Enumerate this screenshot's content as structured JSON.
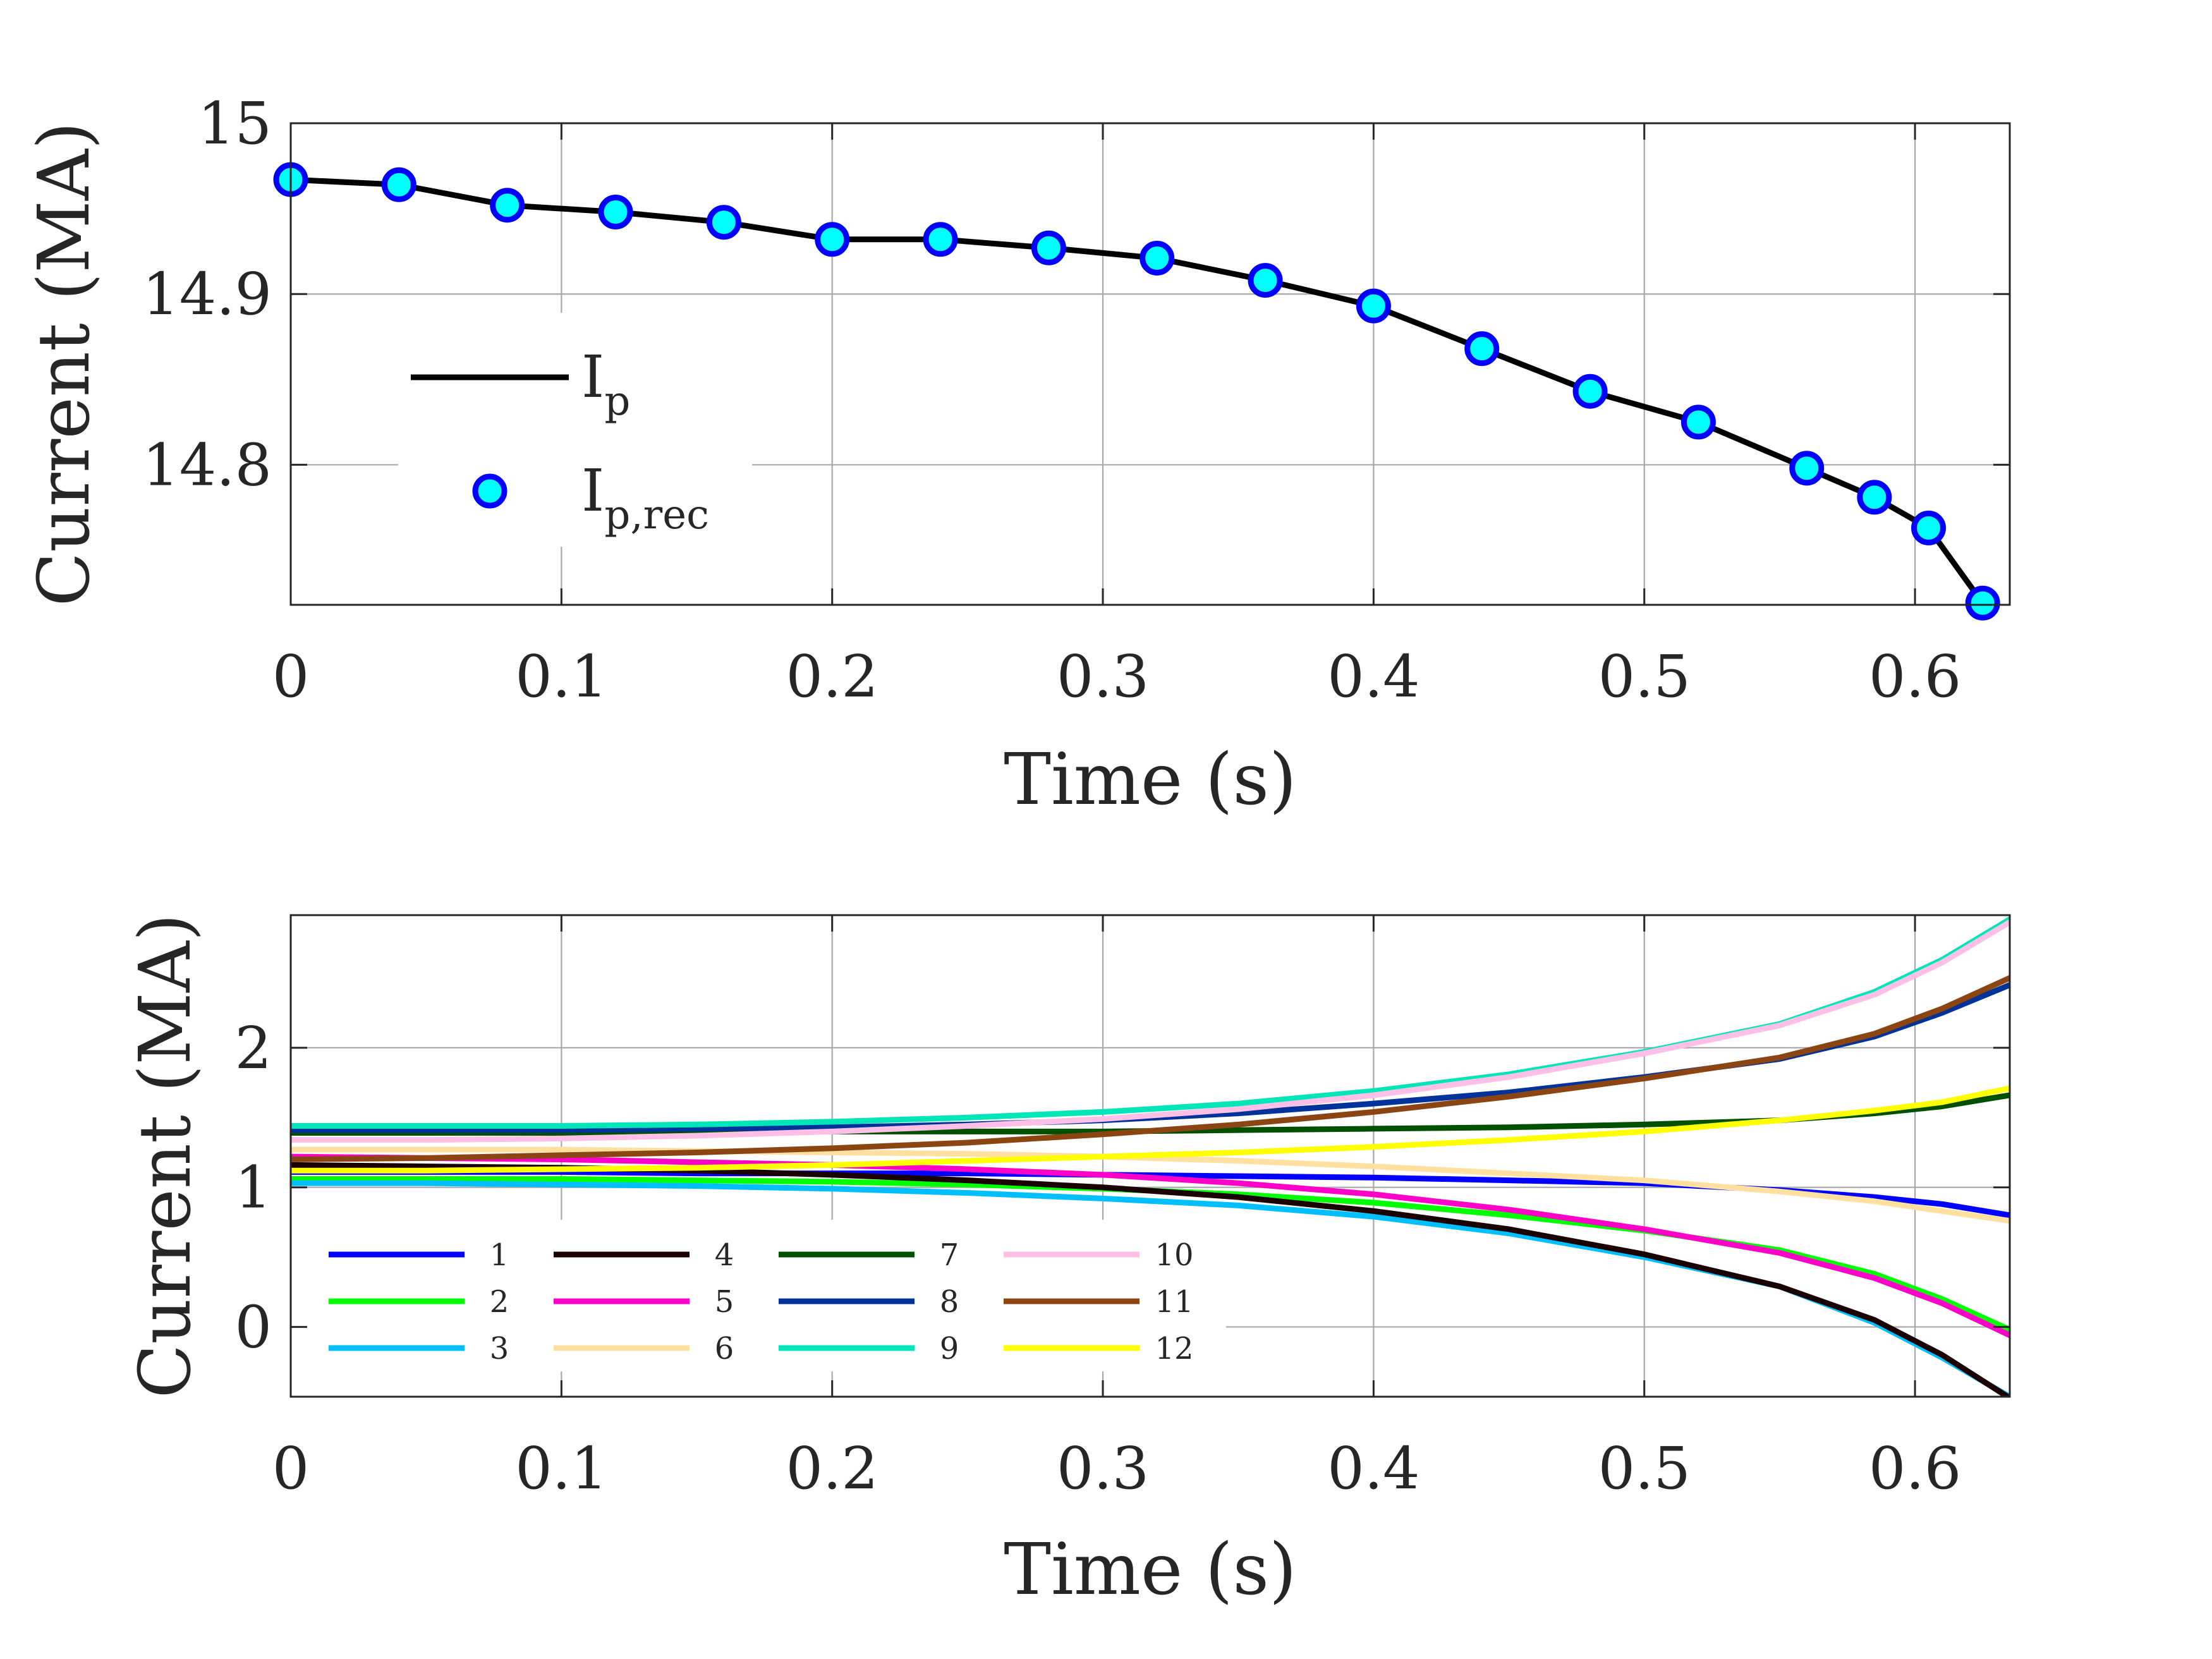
{
  "chart_data": [
    {
      "type": "line",
      "name": "plasma-current",
      "xlabel": "Time (s)",
      "ylabel": "Current (MA)",
      "xlim": [
        0,
        0.635
      ],
      "ylim": [
        14.718,
        15.0
      ],
      "xticks": [
        0,
        0.1,
        0.2,
        0.3,
        0.4,
        0.5,
        0.6
      ],
      "xtick_labels": [
        "0",
        "0.1",
        "0.2",
        "0.3",
        "0.4",
        "0.5",
        "0.6"
      ],
      "yticks": [
        14.8,
        14.9,
        15.0
      ],
      "ytick_labels": [
        "14.8",
        "14.9",
        "15"
      ],
      "grid": true,
      "legend_position": "left",
      "series": [
        {
          "name": "I_p",
          "label_main": "I",
          "label_sub": "p",
          "style": "line",
          "color": "#000000",
          "x": [
            0,
            0.04,
            0.08,
            0.12,
            0.16,
            0.2,
            0.24,
            0.28,
            0.32,
            0.36,
            0.4,
            0.44,
            0.48,
            0.52,
            0.56,
            0.585,
            0.605,
            0.625
          ],
          "y": [
            14.967,
            14.964,
            14.952,
            14.948,
            14.942,
            14.932,
            14.932,
            14.927,
            14.921,
            14.908,
            14.893,
            14.868,
            14.843,
            14.825,
            14.798,
            14.781,
            14.763,
            14.719
          ]
        },
        {
          "name": "I_p,rec",
          "label_main": "I",
          "label_sub": "p,rec",
          "style": "markers",
          "color": "#00ffff",
          "edge_color": "#0000ff",
          "x": [
            0,
            0.04,
            0.08,
            0.12,
            0.16,
            0.2,
            0.24,
            0.28,
            0.32,
            0.36,
            0.4,
            0.44,
            0.48,
            0.52,
            0.56,
            0.585,
            0.605,
            0.625
          ],
          "y": [
            14.967,
            14.964,
            14.952,
            14.948,
            14.942,
            14.932,
            14.932,
            14.927,
            14.921,
            14.908,
            14.893,
            14.868,
            14.843,
            14.825,
            14.798,
            14.781,
            14.763,
            14.719
          ]
        }
      ]
    },
    {
      "type": "line",
      "name": "coil-currents",
      "xlabel": "Time (s)",
      "ylabel": "Current (MA)",
      "xlim": [
        0,
        0.635
      ],
      "ylim": [
        -0.5,
        2.95
      ],
      "xticks": [
        0,
        0.1,
        0.2,
        0.3,
        0.4,
        0.5,
        0.6
      ],
      "xtick_labels": [
        "0",
        "0.1",
        "0.2",
        "0.3",
        "0.4",
        "0.5",
        "0.6"
      ],
      "yticks": [
        0,
        1,
        2
      ],
      "ytick_labels": [
        "0",
        "1",
        "2"
      ],
      "grid": true,
      "legend_position": "bottom-left",
      "x": [
        0,
        0.05,
        0.1,
        0.15,
        0.2,
        0.25,
        0.3,
        0.35,
        0.4,
        0.45,
        0.5,
        0.55,
        0.585,
        0.61,
        0.635
      ],
      "series": [
        {
          "name": "1",
          "color": "#0000ff",
          "values": [
            1.11,
            1.11,
            1.11,
            1.1,
            1.1,
            1.1,
            1.09,
            1.08,
            1.07,
            1.05,
            1.03,
            0.98,
            0.93,
            0.88,
            0.8
          ]
        },
        {
          "name": "2",
          "color": "#00ff00",
          "values": [
            1.06,
            1.06,
            1.06,
            1.05,
            1.04,
            1.02,
            0.99,
            0.95,
            0.89,
            0.8,
            0.69,
            0.55,
            0.38,
            0.2,
            -0.02
          ]
        },
        {
          "name": "3",
          "color": "#00bfff",
          "values": [
            1.03,
            1.03,
            1.02,
            1.01,
            0.99,
            0.96,
            0.92,
            0.87,
            0.79,
            0.67,
            0.5,
            0.29,
            0.03,
            -0.22,
            -0.5
          ]
        },
        {
          "name": "4",
          "color": "#1a0000",
          "values": [
            1.16,
            1.15,
            1.14,
            1.12,
            1.09,
            1.05,
            1.0,
            0.93,
            0.83,
            0.7,
            0.52,
            0.29,
            0.05,
            -0.2,
            -0.51
          ]
        },
        {
          "name": "5",
          "color": "#ff00c8",
          "values": [
            1.22,
            1.21,
            1.2,
            1.18,
            1.16,
            1.13,
            1.09,
            1.03,
            0.95,
            0.84,
            0.7,
            0.53,
            0.35,
            0.17,
            -0.06
          ]
        },
        {
          "name": "6",
          "color": "#ffe0a0",
          "values": [
            1.27,
            1.27,
            1.27,
            1.26,
            1.25,
            1.24,
            1.22,
            1.19,
            1.15,
            1.1,
            1.05,
            0.97,
            0.9,
            0.83,
            0.76
          ]
        },
        {
          "name": "7",
          "color": "#005000",
          "values": [
            1.39,
            1.39,
            1.39,
            1.39,
            1.4,
            1.4,
            1.4,
            1.41,
            1.42,
            1.43,
            1.45,
            1.48,
            1.53,
            1.58,
            1.66
          ]
        },
        {
          "name": "8",
          "color": "#003399",
          "values": [
            1.41,
            1.41,
            1.41,
            1.42,
            1.43,
            1.45,
            1.48,
            1.53,
            1.6,
            1.68,
            1.79,
            1.92,
            2.08,
            2.25,
            2.45
          ]
        },
        {
          "name": "9",
          "color": "#00e6b8",
          "values": [
            1.44,
            1.44,
            1.44,
            1.45,
            1.47,
            1.5,
            1.54,
            1.6,
            1.69,
            1.81,
            1.97,
            2.17,
            2.4,
            2.63,
            2.92
          ]
        },
        {
          "name": "10",
          "color": "#ffbfe6",
          "values": [
            1.34,
            1.34,
            1.35,
            1.37,
            1.4,
            1.44,
            1.49,
            1.56,
            1.66,
            1.79,
            1.96,
            2.16,
            2.38,
            2.61,
            2.9
          ]
        },
        {
          "name": "11",
          "color": "#8b4513",
          "values": [
            1.2,
            1.21,
            1.23,
            1.25,
            1.28,
            1.32,
            1.38,
            1.45,
            1.54,
            1.65,
            1.78,
            1.93,
            2.1,
            2.28,
            2.5
          ]
        },
        {
          "name": "12",
          "color": "#ffff00",
          "values": [
            1.12,
            1.12,
            1.13,
            1.14,
            1.16,
            1.19,
            1.22,
            1.25,
            1.29,
            1.34,
            1.4,
            1.48,
            1.55,
            1.61,
            1.71
          ]
        }
      ]
    }
  ]
}
